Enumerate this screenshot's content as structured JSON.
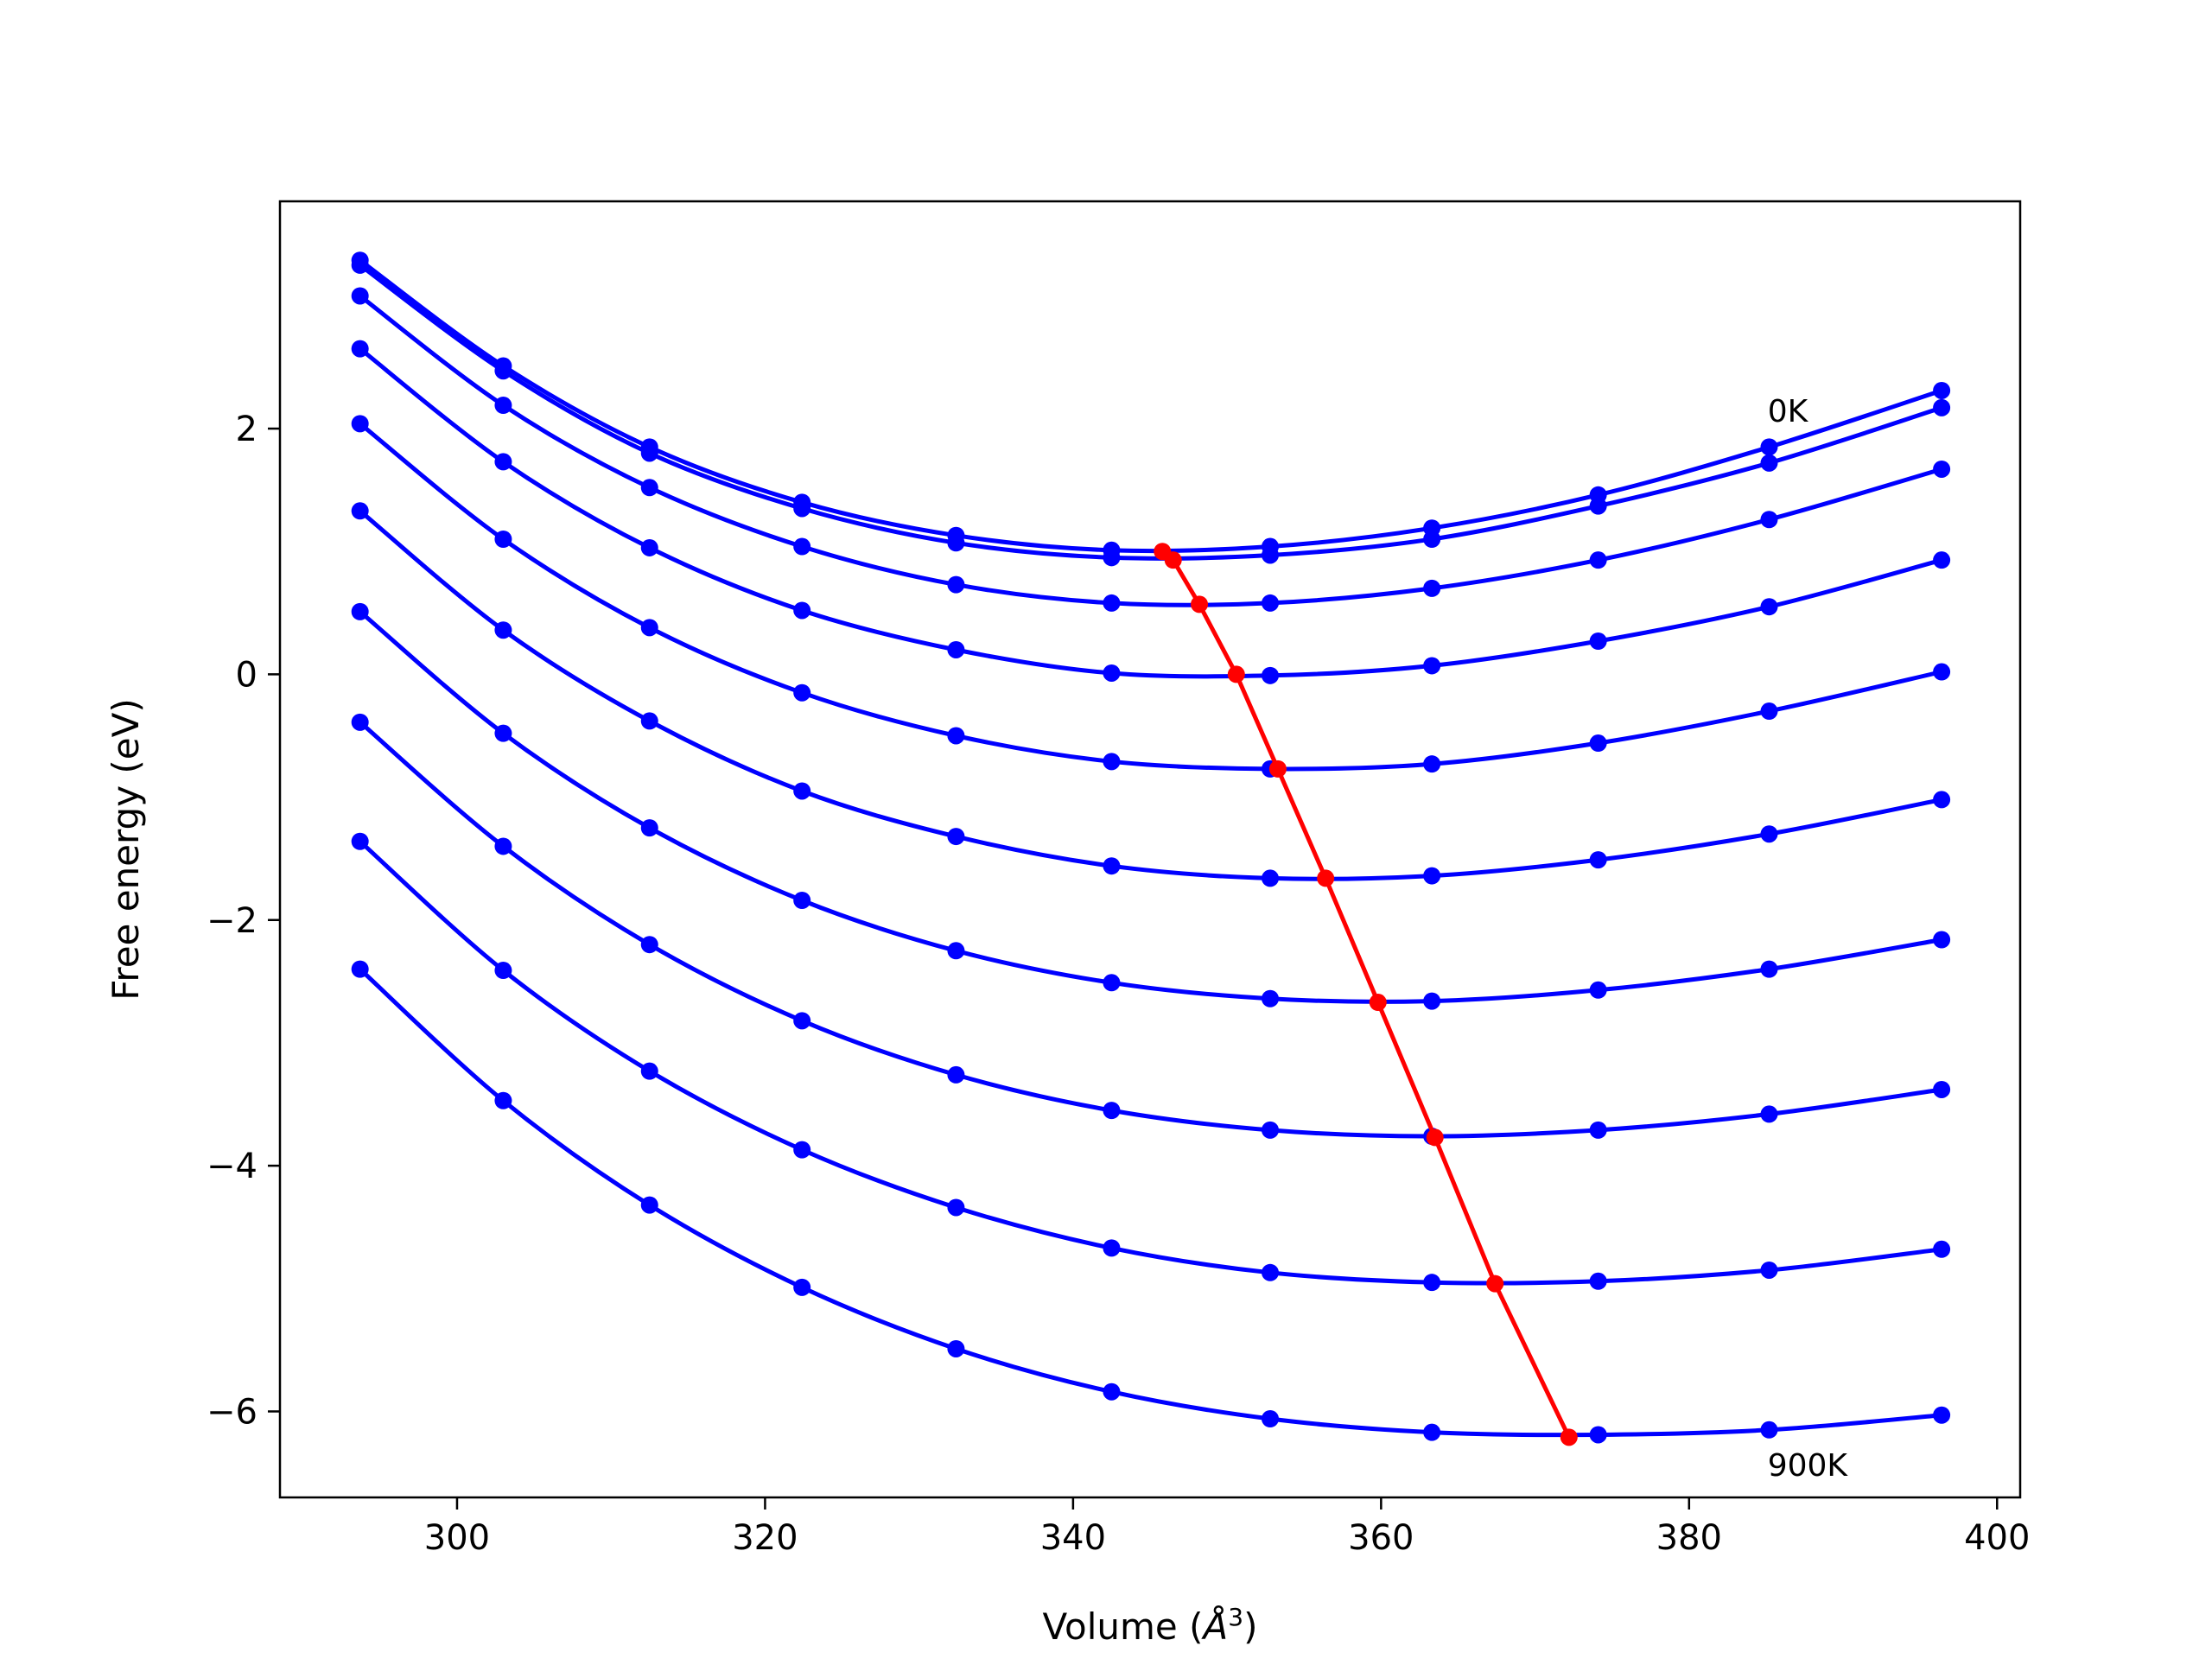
{
  "chart_data": {
    "type": "line",
    "title": "",
    "xlabel": "Volume (Å³)",
    "xlabel_base": "Volume (",
    "xlabel_unit": "Å",
    "xlabel_sup": "3",
    "xlabel_close": ")",
    "ylabel": "Free energy (eV)",
    "xlim": [
      288.5,
      401.5
    ],
    "ylim": [
      -6.7,
      3.85
    ],
    "xticks": [
      300,
      320,
      340,
      360,
      380,
      400
    ],
    "xtick_labels": [
      "300",
      "320",
      "340",
      "360",
      "380",
      "400"
    ],
    "yticks": [
      2,
      0,
      -2,
      -4,
      -6
    ],
    "ytick_labels": [
      "2",
      "0",
      "−2",
      "−4",
      "−6"
    ],
    "grid": false,
    "legend": false,
    "x": [
      293.7,
      303.0,
      312.5,
      322.4,
      332.4,
      342.5,
      352.8,
      363.3,
      374.1,
      385.2,
      396.4
    ],
    "series": [
      {
        "color": "#0000ff",
        "values": [
          3.37,
          2.51,
          1.85,
          1.4,
          1.13,
          1.01,
          1.04,
          1.19,
          1.46,
          1.85,
          2.31
        ]
      },
      {
        "color": "#0000ff",
        "values": [
          3.33,
          2.47,
          1.8,
          1.35,
          1.07,
          0.95,
          0.97,
          1.1,
          1.37,
          1.72,
          2.17
        ]
      },
      {
        "color": "#0000ff",
        "values": [
          3.08,
          2.19,
          1.52,
          1.04,
          0.73,
          0.58,
          0.58,
          0.7,
          0.93,
          1.26,
          1.67
        ]
      },
      {
        "color": "#0000ff",
        "values": [
          2.65,
          1.73,
          1.03,
          0.52,
          0.2,
          0.01,
          -0.01,
          0.07,
          0.27,
          0.55,
          0.93
        ]
      },
      {
        "color": "#0000ff",
        "values": [
          2.04,
          1.1,
          0.38,
          -0.15,
          -0.5,
          -0.71,
          -0.77,
          -0.73,
          -0.56,
          -0.3,
          0.02
        ]
      },
      {
        "color": "#0000ff",
        "values": [
          1.33,
          0.36,
          -0.38,
          -0.95,
          -1.32,
          -1.56,
          -1.66,
          -1.64,
          -1.51,
          -1.3,
          -1.02
        ]
      },
      {
        "color": "#0000ff",
        "values": [
          0.51,
          -0.48,
          -1.25,
          -1.84,
          -2.25,
          -2.51,
          -2.64,
          -2.66,
          -2.57,
          -2.4,
          -2.16
        ]
      },
      {
        "color": "#0000ff",
        "values": [
          -0.39,
          -1.4,
          -2.2,
          -2.82,
          -3.26,
          -3.55,
          -3.71,
          -3.76,
          -3.71,
          -3.58,
          -3.38
        ]
      },
      {
        "color": "#0000ff",
        "values": [
          -1.36,
          -2.41,
          -3.23,
          -3.87,
          -4.34,
          -4.67,
          -4.87,
          -4.95,
          -4.94,
          -4.85,
          -4.68
        ]
      },
      {
        "color": "#0000ff",
        "values": [
          -2.4,
          -3.47,
          -4.32,
          -4.99,
          -5.49,
          -5.84,
          -6.06,
          -6.17,
          -6.19,
          -6.15,
          -6.03
        ]
      }
    ],
    "minima": {
      "color": "#ff0000",
      "x": [
        345.8,
        346.5,
        348.2,
        350.6,
        353.3,
        356.4,
        359.8,
        363.5,
        367.4,
        372.2
      ],
      "y": [
        1.0,
        0.93,
        0.57,
        0.0,
        -0.77,
        -1.66,
        -2.67,
        -3.77,
        -4.96,
        -6.21
      ]
    },
    "annotations": [
      {
        "text": "0K",
        "x": 385.1,
        "y": 2.31
      },
      {
        "text": "900K",
        "x": 385.1,
        "y": -6.27
      }
    ]
  }
}
